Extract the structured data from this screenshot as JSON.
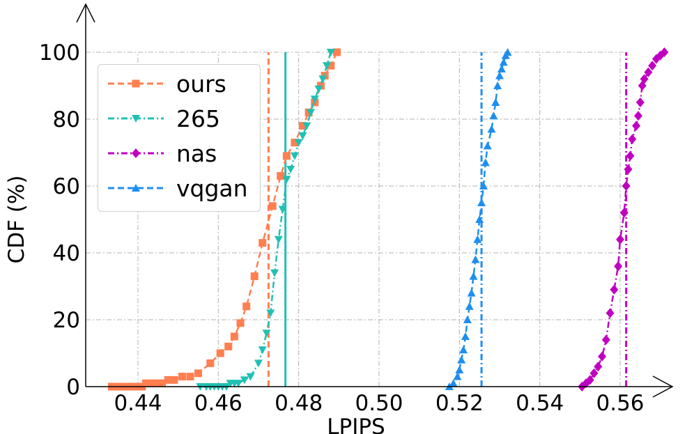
{
  "chart_data": {
    "type": "line",
    "title": "",
    "xlabel": "LPIPS",
    "ylabel": "CDF (%)",
    "xlim": [
      0.427,
      0.573
    ],
    "ylim": [
      0,
      100
    ],
    "xticks": [
      0.44,
      0.46,
      0.48,
      0.5,
      0.52,
      0.54,
      0.56
    ],
    "xtick_labels": [
      "0.44",
      "0.46",
      "0.48",
      "0.50",
      "0.52",
      "0.54",
      "0.56"
    ],
    "yticks": [
      0,
      20,
      40,
      60,
      80,
      100
    ],
    "ytick_labels": [
      "0",
      "20",
      "40",
      "60",
      "80",
      "100"
    ],
    "grid": true,
    "legend_position": "upper-left",
    "series": [
      {
        "name": "ours",
        "color": "#ff7f50",
        "marker": "square",
        "line_style": "dashed",
        "mean_line": 0.4725,
        "mean_line_style": "dashed",
        "x": [
          0.4335,
          0.4345,
          0.4355,
          0.4365,
          0.4375,
          0.4385,
          0.4395,
          0.441,
          0.442,
          0.4435,
          0.445,
          0.446,
          0.4475,
          0.449,
          0.451,
          0.453,
          0.455,
          0.458,
          0.4605,
          0.4625,
          0.464,
          0.4655,
          0.467,
          0.469,
          0.471,
          0.4735,
          0.4755,
          0.477,
          0.479,
          0.481,
          0.4825,
          0.484,
          0.4855,
          0.4865,
          0.488,
          0.4895
        ],
        "y": [
          0,
          0,
          0,
          0,
          0,
          0,
          0,
          0,
          1,
          1,
          1,
          1,
          2,
          2,
          3,
          3,
          4,
          7,
          10,
          12,
          15,
          19,
          24,
          33,
          43,
          54,
          63,
          69,
          73,
          78,
          82,
          85,
          90,
          93,
          96,
          100
        ]
      },
      {
        "name": "265",
        "color": "#20c0b4",
        "marker": "triangle-down",
        "line_style": "dashdot",
        "mean_line": 0.4767,
        "mean_line_style": "solid",
        "x": [
          0.4555,
          0.457,
          0.458,
          0.459,
          0.46,
          0.461,
          0.462,
          0.463,
          0.464,
          0.465,
          0.4665,
          0.468,
          0.47,
          0.471,
          0.472,
          0.473,
          0.474,
          0.475,
          0.476,
          0.477,
          0.478,
          0.479,
          0.48,
          0.481,
          0.482,
          0.483,
          0.484,
          0.485,
          0.486,
          0.487,
          0.488
        ],
        "y": [
          0,
          0,
          0,
          0,
          0,
          0,
          0,
          1,
          1,
          1,
          2,
          3,
          7,
          11,
          16,
          22,
          34,
          44,
          53,
          62,
          65,
          69,
          73,
          75,
          78,
          82,
          86,
          89,
          92,
          96,
          100
        ]
      },
      {
        "name": "nas",
        "color": "#c000c0",
        "marker": "diamond",
        "line_style": "dashdot",
        "mean_line": 0.5615,
        "mean_line_style": "dashdot",
        "x": [
          0.5505,
          0.5515,
          0.5525,
          0.5535,
          0.5545,
          0.5555,
          0.5565,
          0.5575,
          0.5585,
          0.5595,
          0.56,
          0.561,
          0.5615,
          0.562,
          0.5625,
          0.563,
          0.564,
          0.5645,
          0.565,
          0.5655,
          0.566,
          0.567,
          0.568,
          0.569,
          0.57,
          0.571
        ],
        "y": [
          0,
          1,
          2,
          4,
          6,
          9,
          14,
          22,
          29,
          36,
          44,
          52,
          60,
          65,
          69,
          74,
          78,
          81,
          85,
          90,
          92,
          94,
          96,
          98,
          99,
          100
        ]
      },
      {
        "name": "vqgan",
        "color": "#1e8ef0",
        "marker": "triangle-up",
        "line_style": "dashed",
        "mean_line": 0.5255,
        "mean_line_style": "dashdot",
        "x": [
          0.5175,
          0.5185,
          0.5195,
          0.52,
          0.5205,
          0.521,
          0.5215,
          0.522,
          0.5225,
          0.523,
          0.5235,
          0.524,
          0.5245,
          0.525,
          0.5255,
          0.526,
          0.5265,
          0.527,
          0.528,
          0.5285,
          0.529,
          0.5295,
          0.53,
          0.5305,
          0.531,
          0.5315,
          0.532
        ],
        "y": [
          0,
          1,
          3,
          5,
          8,
          11,
          15,
          20,
          24,
          28,
          33,
          38,
          44,
          50,
          55,
          60,
          67,
          72,
          77,
          81,
          85,
          90,
          93,
          95,
          97,
          99,
          100
        ]
      }
    ]
  }
}
